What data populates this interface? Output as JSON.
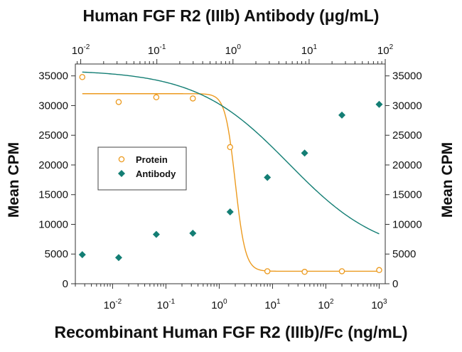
{
  "chart_data": {
    "type": "scatter",
    "title": "Human FGF R2 (IIIb) Antibody (μg/mL)",
    "xlabel": "Recombinant Human FGF R2 (IIIb)/Fc (ng/mL)",
    "ylabel": "Mean CPM",
    "ylabel_right": "Mean CPM",
    "x_scale": "log",
    "x_bottom_lim": [
      0.002,
      1300
    ],
    "x_bottom_tick_exponents": [
      "-2",
      "-1",
      "0",
      "1",
      "2",
      "3"
    ],
    "x_top_lim": [
      0.0085,
      100
    ],
    "x_top_tick_exponents": [
      "-2",
      "-1",
      "0",
      "1",
      "2"
    ],
    "tick_base": "10",
    "ylim": [
      0,
      37000
    ],
    "y_ticks": [
      "0",
      "5000",
      "10000",
      "15000",
      "20000",
      "25000",
      "30000",
      "35000"
    ],
    "legend_position": "center-left",
    "grid": false,
    "series": [
      {
        "name": "Protein",
        "marker": "open-circle",
        "color": "#ec9a1e",
        "x_axis": "bottom",
        "x": [
          0.0027,
          0.013,
          0.066,
          0.32,
          1.6,
          8,
          40,
          200,
          1000
        ],
        "y": [
          34800,
          30600,
          31400,
          31200,
          23000,
          2100,
          2000,
          2100,
          2300
        ],
        "fit": {
          "top": 32000,
          "bottom": 2100,
          "ec50": 2.0,
          "hill": 4.6
        }
      },
      {
        "name": "Antibody",
        "marker": "filled-diamond",
        "color": "#137e74",
        "x_axis": "bottom",
        "x": [
          0.0027,
          0.013,
          0.066,
          0.32,
          1.6,
          8,
          40,
          200,
          1000
        ],
        "y": [
          4900,
          4400,
          8300,
          8500,
          12100,
          17900,
          22000,
          28400,
          30200
        ],
        "fit": {
          "top": 36000,
          "bottom": 4500,
          "ec50": 20,
          "hill": 0.5
        }
      }
    ]
  }
}
